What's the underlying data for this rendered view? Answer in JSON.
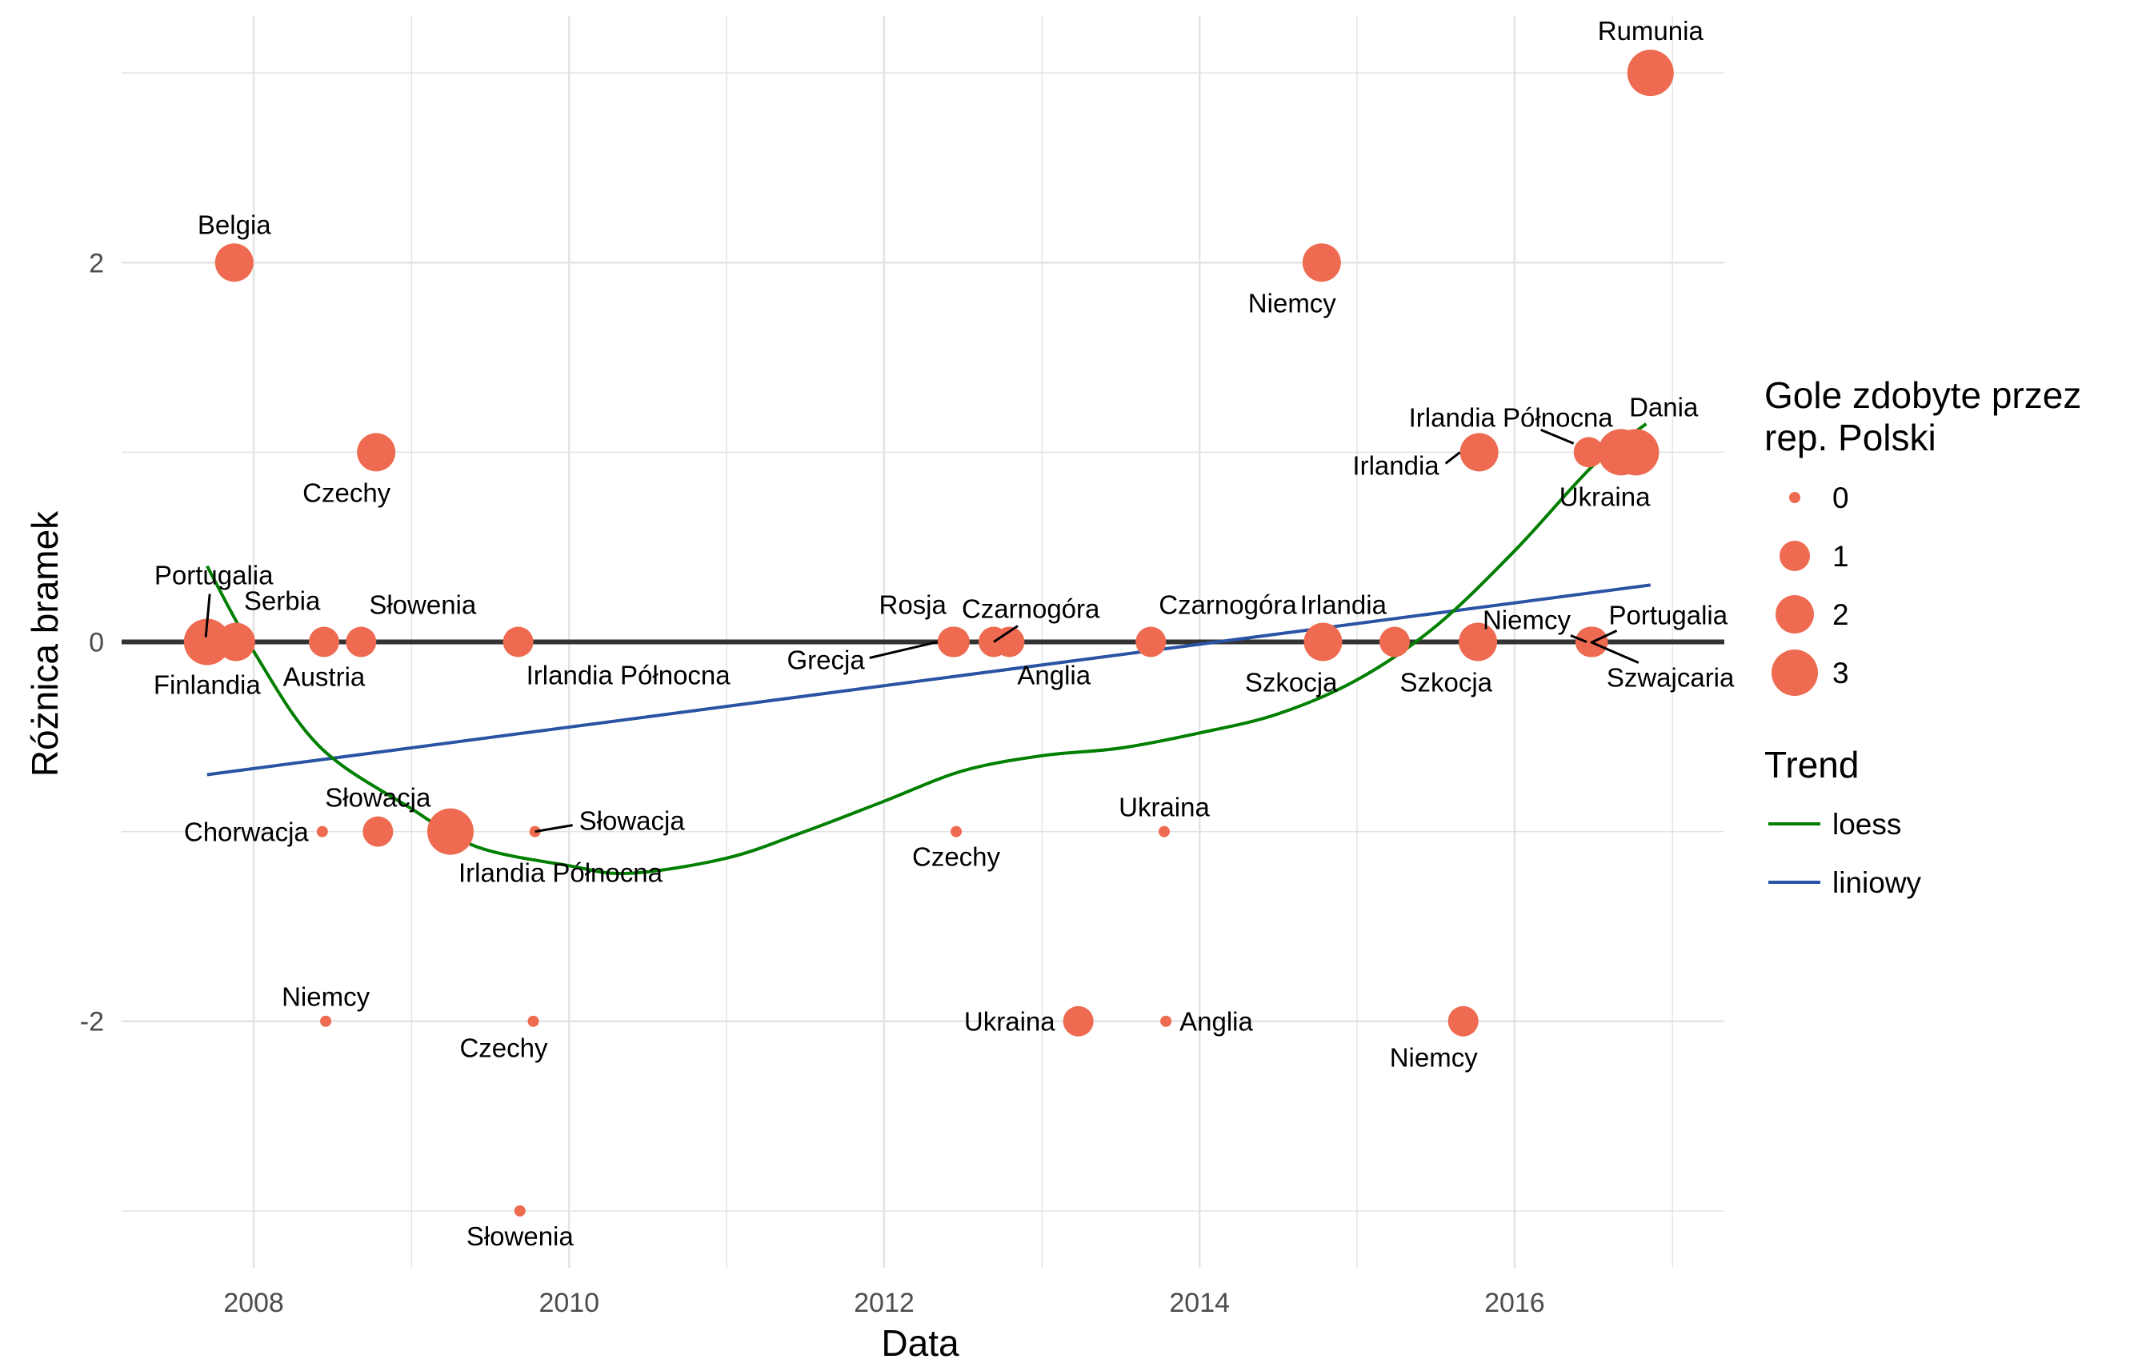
{
  "chart_data": {
    "type": "scatter",
    "xlabel": "Data",
    "ylabel": "Różnica bramek",
    "xlim": [
      "2007-03-01",
      "2017-05-01"
    ],
    "ylim": [
      -3.3,
      3.3
    ],
    "x_ticks": [
      {
        "value": "2008-01-01",
        "label": "2008"
      },
      {
        "value": "2010-01-01",
        "label": "2010"
      },
      {
        "value": "2012-01-01",
        "label": "2012"
      },
      {
        "value": "2014-01-01",
        "label": "2014"
      },
      {
        "value": "2016-01-01",
        "label": "2016"
      }
    ],
    "y_ticks": [
      {
        "value": 2,
        "label": "2"
      },
      {
        "value": 0,
        "label": "0"
      },
      {
        "value": -2,
        "label": "-2"
      }
    ],
    "grid": true,
    "zero_line": true,
    "colors": {
      "points": "#EE6A50",
      "loess": "#007F00",
      "linear": "#2A54A3",
      "zero_line": "#333333",
      "grid": "#E3E3E3"
    },
    "points": [
      {
        "date": "2007-09-12",
        "diff": 0,
        "goals": 2,
        "label": "Portugalia",
        "label_side": "above-left"
      },
      {
        "date": "2007-09-15",
        "diff": 0,
        "goals": 3,
        "label": "Finlandia",
        "label_side": "below"
      },
      {
        "date": "2007-11-17",
        "diff": 2,
        "goals": 2,
        "label": "Belgia",
        "label_side": "above"
      },
      {
        "date": "2007-11-21",
        "diff": 0,
        "goals": 2,
        "label": "Serbia",
        "label_side": "above-right"
      },
      {
        "date": "2008-06-08",
        "diff": -1,
        "goals": 0,
        "label": "Chorwacja",
        "label_side": "left"
      },
      {
        "date": "2008-06-12",
        "diff": 0,
        "goals": 1,
        "label": "Austria",
        "label_side": "below"
      },
      {
        "date": "2008-06-16",
        "diff": -2,
        "goals": 0,
        "label": "Niemcy",
        "label_side": "above"
      },
      {
        "date": "2008-09-06",
        "diff": 0,
        "goals": 1,
        "label": "Słowenia",
        "label_side": "above-right"
      },
      {
        "date": "2008-10-11",
        "diff": 1,
        "goals": 2,
        "label": "Czechy",
        "label_side": "below-left"
      },
      {
        "date": "2008-10-15",
        "diff": -1,
        "goals": 1,
        "label": "Słowacja",
        "label_side": "above"
      },
      {
        "date": "2009-04-01",
        "diff": -1,
        "goals": 3,
        "label": "Irlandia Północna",
        "label_side": "below-right"
      },
      {
        "date": "2009-09-05",
        "diff": 0,
        "goals": 1,
        "label": "Irlandia Północna",
        "label_side": "below-right"
      },
      {
        "date": "2009-09-09",
        "diff": -3,
        "goals": 0,
        "label": "Słowenia",
        "label_side": "below"
      },
      {
        "date": "2009-10-10",
        "diff": -2,
        "goals": 0,
        "label": "Czechy",
        "label_side": "below-left"
      },
      {
        "date": "2009-10-14",
        "diff": -1,
        "goals": 0,
        "label": "Słowacja",
        "label_side": "right-leader"
      },
      {
        "date": "2012-06-08",
        "diff": 0,
        "goals": 1,
        "label": "Grecja",
        "label_side": "left-leader"
      },
      {
        "date": "2012-06-12",
        "diff": 0,
        "goals": 1,
        "label": "Rosja",
        "label_side": "above-left"
      },
      {
        "date": "2012-06-16",
        "diff": -1,
        "goals": 0,
        "label": "Czechy",
        "label_side": "below"
      },
      {
        "date": "2012-09-11",
        "diff": 0,
        "goals": 1,
        "label": "Czarnogóra",
        "label_side": "above-right-leader"
      },
      {
        "date": "2012-10-17",
        "diff": 0,
        "goals": 1,
        "label": "Anglia",
        "label_side": "below-right"
      },
      {
        "date": "2013-03-26",
        "diff": -2,
        "goals": 1,
        "label": "Ukraina",
        "label_side": "left"
      },
      {
        "date": "2013-09-10",
        "diff": 0,
        "goals": 1,
        "label": "Czarnogóra",
        "label_side": "above-right"
      },
      {
        "date": "2013-10-11",
        "diff": -1,
        "goals": 0,
        "label": "Ukraina",
        "label_side": "above"
      },
      {
        "date": "2013-10-15",
        "diff": -2,
        "goals": 0,
        "label": "Anglia",
        "label_side": "right"
      },
      {
        "date": "2014-10-11",
        "diff": 2,
        "goals": 2,
        "label": "Niemcy",
        "label_side": "below-left"
      },
      {
        "date": "2014-10-14",
        "diff": 0,
        "goals": 2,
        "label": "Szkocja",
        "label_side": "below-left"
      },
      {
        "date": "2015-03-29",
        "diff": 0,
        "goals": 1,
        "label": "Irlandia",
        "label_side": "above-left"
      },
      {
        "date": "2015-09-04",
        "diff": -2,
        "goals": 1,
        "label": "Niemcy",
        "label_side": "below-left"
      },
      {
        "date": "2015-10-08",
        "diff": 0,
        "goals": 2,
        "label": "Szkocja",
        "label_side": "below-left"
      },
      {
        "date": "2015-10-11",
        "diff": 1,
        "goals": 2,
        "label": "Irlandia",
        "label_side": "left-leader"
      },
      {
        "date": "2016-06-16",
        "diff": 0,
        "goals": 0,
        "label": "Niemcy",
        "label_side": "above-left-leader"
      },
      {
        "date": "2016-06-21",
        "diff": 1,
        "goals": 1,
        "label": "Irlandia Północna",
        "label_side": "above-left-leader"
      },
      {
        "date": "2016-06-25",
        "diff": 0,
        "goals": 1,
        "label": "Szwajcaria",
        "label_side": "below-right-leader"
      },
      {
        "date": "2016-06-30",
        "diff": 0,
        "goals": 1,
        "label": "Portugalia",
        "label_side": "above-right-leader"
      },
      {
        "date": "2016-09-04",
        "diff": 1,
        "goals": 3,
        "label": "Dania",
        "label_side": "above-right"
      },
      {
        "date": "2016-10-08",
        "diff": 1,
        "goals": 3,
        "label": "Ukraina",
        "label_side": "below-left"
      },
      {
        "date": "2016-11-11",
        "diff": 3,
        "goals": 3,
        "label": "Rumunia",
        "label_side": "above"
      }
    ],
    "loess": [
      [
        "2007-09-15",
        0.4
      ],
      [
        "2008-01-01",
        -0.05
      ],
      [
        "2008-06-01",
        -0.55
      ],
      [
        "2009-01-01",
        -0.88
      ],
      [
        "2009-06-01",
        -1.08
      ],
      [
        "2010-01-01",
        -1.18
      ],
      [
        "2010-05-20",
        -1.22
      ],
      [
        "2011-01-01",
        -1.14
      ],
      [
        "2011-07-01",
        -1.0
      ],
      [
        "2012-01-01",
        -0.84
      ],
      [
        "2012-07-01",
        -0.68
      ],
      [
        "2013-01-01",
        -0.6
      ],
      [
        "2013-07-01",
        -0.56
      ],
      [
        "2014-01-01",
        -0.48
      ],
      [
        "2014-07-01",
        -0.38
      ],
      [
        "2015-01-01",
        -0.2
      ],
      [
        "2015-07-01",
        0.08
      ],
      [
        "2016-01-01",
        0.48
      ],
      [
        "2016-07-01",
        0.93
      ],
      [
        "2016-11-01",
        1.15
      ]
    ],
    "linear": [
      [
        "2007-09-15",
        -0.7
      ],
      [
        "2016-11-11",
        0.3
      ]
    ],
    "legend": {
      "size_title_line1": "Gole zdobyte przez",
      "size_title_line2": "rep. Polski",
      "size_items": [
        {
          "goals": 0,
          "label": "0"
        },
        {
          "goals": 1,
          "label": "1"
        },
        {
          "goals": 2,
          "label": "2"
        },
        {
          "goals": 3,
          "label": "3"
        }
      ],
      "trend_title": "Trend",
      "trend_items": [
        {
          "key": "loess",
          "label": "loess"
        },
        {
          "key": "linear",
          "label": "liniowy"
        }
      ]
    }
  }
}
